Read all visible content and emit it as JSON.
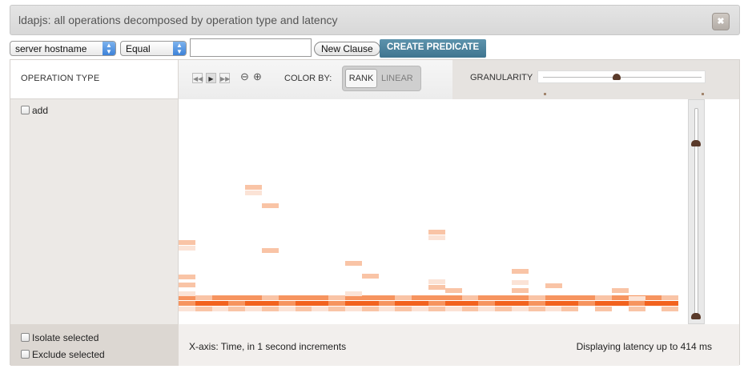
{
  "window": {
    "title": "ldapjs: all operations decomposed by operation type and latency",
    "close_icon": "close-icon"
  },
  "predicate": {
    "field_select": "server hostname",
    "operator_select": "Equal",
    "value_input": "",
    "new_clause_label": "New Clause",
    "create_predicate_label": "CREATE PREDICATE"
  },
  "left_panel": {
    "header": "OPERATION TYPE",
    "items": [
      {
        "label": "add",
        "checked": false
      }
    ],
    "isolate_label": "Isolate selected",
    "exclude_label": "Exclude selected"
  },
  "toolbar": {
    "media_icons": [
      "rewind-icon",
      "play-icon",
      "fast-forward-icon"
    ],
    "zoom_out_icon": "zoom-out-icon",
    "zoom_in_icon": "zoom-in-icon",
    "color_by_label": "COLOR BY:",
    "rank_label": "RANK",
    "linear_label": "LINEAR",
    "color_by_selected": "RANK",
    "granularity_label": "GRANULARITY"
  },
  "footer": {
    "x_axis_text": "X-axis: Time, in 1 second increments",
    "latency_text": "Displaying latency up to 414 ms"
  },
  "colors": {
    "heat_dark": "#f2621e",
    "heat_mid": "#f6945f",
    "heat_light": "#f9c4a6",
    "heat_pale": "#fbe3d6",
    "create_button": "#4a809b"
  }
}
